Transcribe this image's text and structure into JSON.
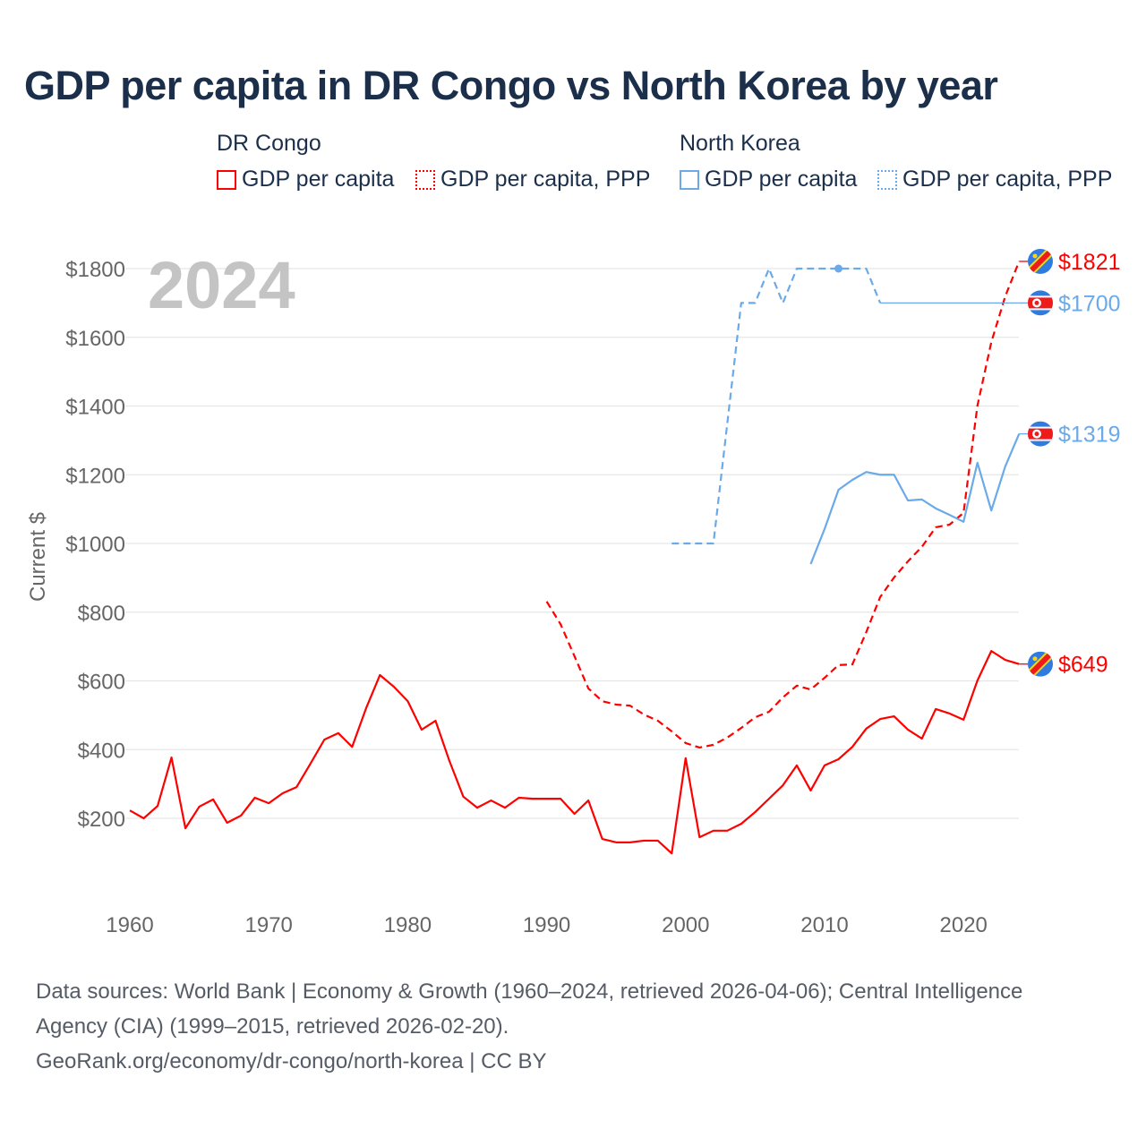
{
  "title": "GDP per capita in DR Congo vs North Korea by year",
  "legend": {
    "groups": [
      {
        "label": "DR Congo"
      },
      {
        "label": "North Korea"
      }
    ],
    "items": [
      {
        "label": "GDP per capita",
        "color": "#ff0000",
        "style": "solid"
      },
      {
        "label": "GDP per capita, PPP",
        "color": "#ff0000",
        "style": "dotted"
      },
      {
        "label": "GDP per capita",
        "color": "#6aaae8",
        "style": "solid"
      },
      {
        "label": "GDP per capita, PPP",
        "color": "#6aaae8",
        "style": "dotted"
      }
    ]
  },
  "year_watermark": "2024",
  "footer": {
    "line1": "Data sources: World Bank | Economy & Growth (1960–2024, retrieved 2026-04-06); Central Intelligence",
    "line2": "Agency (CIA) (1999–2015, retrieved 2026-02-20).",
    "line3": "GeoRank.org/economy/dr-congo/north-korea | CC BY"
  },
  "chart_data": {
    "type": "line",
    "title": "GDP per capita in DR Congo vs North Korea by year",
    "xlabel": "",
    "ylabel": "Current $",
    "xlim": [
      1960,
      2024
    ],
    "ylim": [
      0,
      1850
    ],
    "xticks": [
      1960,
      1970,
      1980,
      1990,
      2000,
      2010,
      2020
    ],
    "yticks": [
      200,
      400,
      600,
      800,
      1000,
      1200,
      1400,
      1600,
      1800
    ],
    "ytick_labels": [
      "$200",
      "$400",
      "$600",
      "$800",
      "$1000",
      "$1200",
      "$1400",
      "$1600",
      "$1800"
    ],
    "grid": true,
    "series": [
      {
        "name": "DR Congo GDP per capita",
        "color": "#ff0000",
        "dash": false,
        "x_start": 1960,
        "values": [
          223,
          200,
          236,
          377,
          171,
          234,
          255,
          187,
          208,
          260,
          244,
          273,
          291,
          359,
          429,
          448,
          408,
          520,
          617,
          583,
          541,
          458,
          484,
          367,
          263,
          231,
          252,
          231,
          260,
          257,
          257,
          257,
          213,
          252,
          140,
          130,
          130,
          135,
          135,
          98,
          375,
          145,
          164,
          164,
          184,
          218,
          257,
          296,
          354,
          281,
          354,
          372,
          408,
          461,
          489,
          497,
          458,
          432,
          518,
          505,
          487,
          601,
          687,
          661,
          649
        ],
        "end_label": "$649",
        "flag": "cd"
      },
      {
        "name": "DR Congo GDP per capita, PPP",
        "color": "#ff0000",
        "dash": true,
        "x_start": 1990,
        "values": [
          831,
          765,
          672,
          578,
          541,
          531,
          528,
          502,
          484,
          453,
          419,
          406,
          414,
          435,
          463,
          494,
          510,
          552,
          586,
          575,
          609,
          646,
          648,
          742,
          844,
          901,
          948,
          990,
          1047,
          1055,
          1089,
          1401,
          1586,
          1719,
          1821
        ],
        "end_label": "$1821",
        "flag": "cd"
      },
      {
        "name": "North Korea GDP per capita",
        "color": "#6aaae8",
        "dash": false,
        "x_start": 2009,
        "values": [
          940,
          1042,
          1156,
          1185,
          1208,
          1200,
          1200,
          1125,
          1128,
          1102,
          1083,
          1063,
          1235,
          1096,
          1224,
          1319
        ],
        "end_label": "$1319",
        "flag": "kp"
      },
      {
        "name": "North Korea GDP per capita, PPP",
        "color": "#6aaae8",
        "dash": true,
        "x_start": 1999,
        "values": [
          1000,
          1000,
          1000,
          1000,
          1350,
          1700,
          1700,
          1800,
          1700,
          1800,
          1800,
          1800,
          1800,
          1800,
          1800,
          1700
        ],
        "end_label": "$1700",
        "flag": "kp",
        "marker_year": 2011,
        "extend_to": 2024
      }
    ]
  }
}
